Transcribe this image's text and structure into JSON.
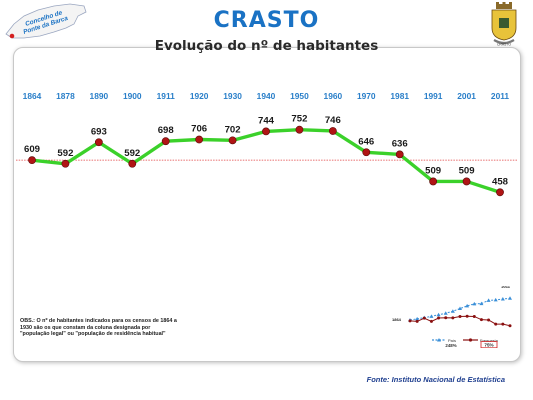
{
  "badge": {
    "line1": "Concelho de",
    "line2": "Ponte da Barca"
  },
  "title": "CRASTO",
  "subtitle": "Evolução do nº de habitantes",
  "coat_of_arms_label": "CRASTO",
  "colors": {
    "title": "#1a72c4",
    "year_labels": "#2a7fc9",
    "line": "#3bd12a",
    "marker": "#b01515",
    "reference_line": "#e04040",
    "country_series": "#3a8fd8",
    "parish_series": "#8a1010"
  },
  "chart_data": {
    "type": "line",
    "categories": [
      "1864",
      "1878",
      "1890",
      "1900",
      "1911",
      "1920",
      "1930",
      "1940",
      "1950",
      "1960",
      "1970",
      "1981",
      "1991",
      "2001",
      "2011"
    ],
    "values": [
      609,
      592,
      693,
      592,
      698,
      706,
      702,
      744,
      752,
      746,
      646,
      636,
      509,
      509,
      458
    ],
    "data_labels": [
      "609",
      "592",
      "693",
      "592",
      "698",
      "706",
      "702",
      "744",
      "752",
      "746",
      "646",
      "636",
      "509",
      "509",
      "458"
    ],
    "title": "Evolução do nº de habitantes",
    "xlabel": "",
    "ylabel": "",
    "reference_line": 609,
    "grid": false
  },
  "mini_chart": {
    "start_label": "1864",
    "end_label": "2011",
    "country_values": [
      100,
      108,
      116,
      125,
      136,
      146,
      160,
      178,
      196,
      210,
      212,
      234,
      237,
      243,
      248
    ],
    "parish_values": [
      609,
      592,
      693,
      592,
      698,
      706,
      702,
      744,
      752,
      746,
      646,
      636,
      509,
      509,
      458
    ],
    "legend_country": "País",
    "legend_parish": "Freguesia",
    "country_change": "248%",
    "parish_change": "75%"
  },
  "note": "OBS.: O nº de habitantes indicados para os censos de 1864 a 1930 são os que constam da coluna designada por \"população legal\" ou \"população de residência habitual\"",
  "source": "Fonte: Instituto Nacional de Estatística"
}
